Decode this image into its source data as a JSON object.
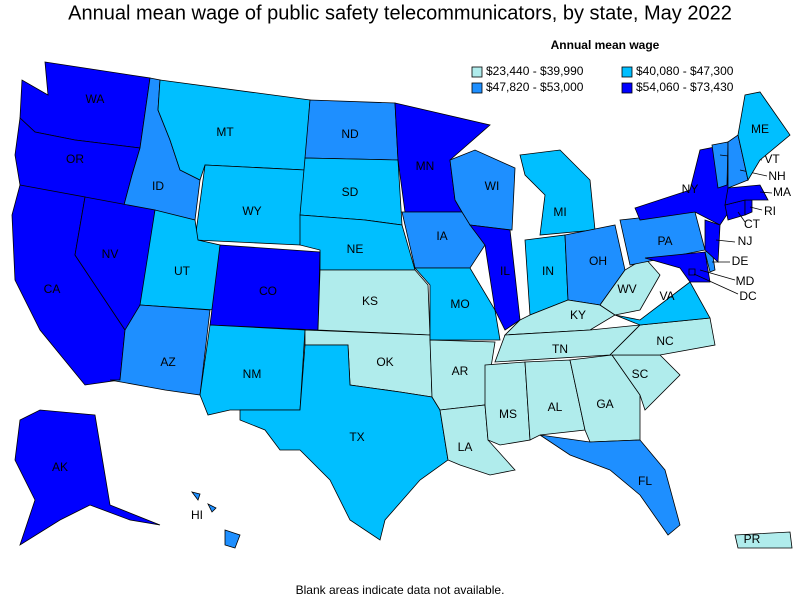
{
  "title": "Annual mean wage of public safety telecommunicators, by state, May 2022",
  "legend": {
    "title": "Annual mean wage",
    "items": [
      {
        "label": "$23,440 - $39,990",
        "color": "#b0ecec"
      },
      {
        "label": "$40,080 - $47,300",
        "color": "#00bfff"
      },
      {
        "label": "$47,820 - $53,000",
        "color": "#1e8fff"
      },
      {
        "label": "$54,060 - $73,430",
        "color": "#0000ff"
      }
    ]
  },
  "states": [
    {
      "abbr": "WA",
      "class": 3
    },
    {
      "abbr": "OR",
      "class": 3
    },
    {
      "abbr": "ID",
      "class": 2
    },
    {
      "abbr": "MT",
      "class": 1
    },
    {
      "abbr": "WY",
      "class": 1
    },
    {
      "abbr": "ND",
      "class": 2
    },
    {
      "abbr": "SD",
      "class": 1
    },
    {
      "abbr": "NE",
      "class": 1
    },
    {
      "abbr": "CA",
      "class": 3
    },
    {
      "abbr": "NV",
      "class": 3
    },
    {
      "abbr": "UT",
      "class": 1
    },
    {
      "abbr": "AZ",
      "class": 2
    },
    {
      "abbr": "CO",
      "class": 3
    },
    {
      "abbr": "NM",
      "class": 1
    },
    {
      "abbr": "KS",
      "class": 0
    },
    {
      "abbr": "OK",
      "class": 0
    },
    {
      "abbr": "TX",
      "class": 1
    },
    {
      "abbr": "MN",
      "class": 3
    },
    {
      "abbr": "IA",
      "class": 2
    },
    {
      "abbr": "MO",
      "class": 1
    },
    {
      "abbr": "AR",
      "class": 0
    },
    {
      "abbr": "LA",
      "class": 0
    },
    {
      "abbr": "WI",
      "class": 2
    },
    {
      "abbr": "IL",
      "class": 3
    },
    {
      "abbr": "MI",
      "class": 1
    },
    {
      "abbr": "IN",
      "class": 1
    },
    {
      "abbr": "OH",
      "class": 2
    },
    {
      "abbr": "KY",
      "class": 0
    },
    {
      "abbr": "TN",
      "class": 0
    },
    {
      "abbr": "MS",
      "class": 0
    },
    {
      "abbr": "AL",
      "class": 0
    },
    {
      "abbr": "GA",
      "class": 0
    },
    {
      "abbr": "FL",
      "class": 2
    },
    {
      "abbr": "SC",
      "class": 0
    },
    {
      "abbr": "NC",
      "class": 0
    },
    {
      "abbr": "VA",
      "class": 1
    },
    {
      "abbr": "WV",
      "class": 0
    },
    {
      "abbr": "PA",
      "class": 2
    },
    {
      "abbr": "NY",
      "class": 3
    },
    {
      "abbr": "MD",
      "class": 3
    },
    {
      "abbr": "DE",
      "class": 2
    },
    {
      "abbr": "NJ",
      "class": 3
    },
    {
      "abbr": "DC",
      "class": 3
    },
    {
      "abbr": "CT",
      "class": 3
    },
    {
      "abbr": "RI",
      "class": 3
    },
    {
      "abbr": "MA",
      "class": 3
    },
    {
      "abbr": "VT",
      "class": 2
    },
    {
      "abbr": "NH",
      "class": 2
    },
    {
      "abbr": "ME",
      "class": 1
    },
    {
      "abbr": "AK",
      "class": 3
    },
    {
      "abbr": "HI",
      "class": 2
    },
    {
      "abbr": "PR",
      "class": 0
    }
  ],
  "footnote": "Blank areas indicate data not available."
}
